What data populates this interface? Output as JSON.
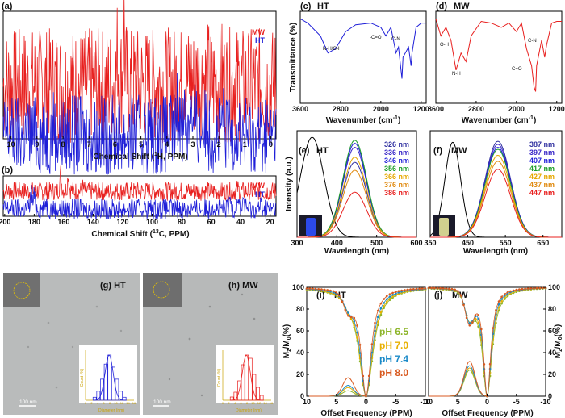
{
  "figure": {
    "colors": {
      "mw": "#e8201f",
      "ht": "#1f1fd8",
      "black": "#000000"
    }
  },
  "chart_data": [
    {
      "id": "a",
      "type": "line",
      "panel_label": "(a)",
      "xlabel": "Chemical Shift (1H, PPM)",
      "xlim": [
        10.3,
        -0.2
      ],
      "x_ticks": [
        "10",
        "9",
        "8",
        "7",
        "6",
        "5",
        "4",
        "3",
        "2",
        "1",
        "0"
      ],
      "legend": [
        "MW",
        "HT"
      ],
      "series": [
        {
          "name": "MW",
          "peaks": [
            [
              5.9,
              0.55
            ],
            [
              5.65,
              1.0
            ],
            [
              3.6,
              0.28
            ],
            [
              3.3,
              0.26
            ],
            [
              3.1,
              0.3
            ],
            [
              2.8,
              0.22
            ],
            [
              2.6,
              0.2
            ],
            [
              2.4,
              0.16
            ],
            [
              1.9,
              0.2
            ],
            [
              1.4,
              0.12
            ]
          ]
        },
        {
          "name": "HT",
          "peaks": [
            [
              8.35,
              0.35
            ],
            [
              3.6,
              0.6
            ],
            [
              3.45,
              0.8
            ],
            [
              3.3,
              0.65
            ],
            [
              3.1,
              1.0
            ],
            [
              2.9,
              0.45
            ],
            [
              2.6,
              0.55
            ],
            [
              2.45,
              0.35
            ],
            [
              1.85,
              0.55
            ],
            [
              1.4,
              0.2
            ]
          ]
        }
      ]
    },
    {
      "id": "b",
      "type": "line",
      "panel_label": "(b)",
      "xlabel": "Chemical Shift (13C, PPM)",
      "xlim": [
        201,
        16
      ],
      "x_ticks": [
        "200",
        "180",
        "160",
        "140",
        "120",
        "100",
        "80",
        "60",
        "40",
        "20"
      ],
      "legend": [
        "MW",
        "HT"
      ],
      "series": [
        {
          "name": "MW",
          "peaks": [
            [
              162,
              0.9
            ],
            [
              157,
              0.85
            ],
            [
              147,
              0.2
            ],
            [
              42,
              0.15
            ]
          ]
        },
        {
          "name": "HT",
          "peaks": [
            [
              182,
              0.8
            ],
            [
              180,
              0.6
            ],
            [
              172,
              0.45
            ],
            [
              59,
              0.25
            ],
            [
              47,
              0.45
            ],
            [
              42,
              0.6
            ],
            [
              38,
              0.5
            ],
            [
              26,
              0.3
            ]
          ]
        }
      ]
    },
    {
      "id": "c",
      "type": "line",
      "panel_label": "(c)",
      "title": "HT",
      "xlabel": "Wavenumber (cm-1)",
      "ylabel": "Transmittance (%)",
      "xlim": [
        3600,
        1100
      ],
      "x_ticks": [
        "3600",
        "2800",
        "2000",
        "1200"
      ],
      "annotations": [
        "N-H/O-H",
        "-C=O",
        "C-N"
      ],
      "series": [
        {
          "name": "HT",
          "points": [
            [
              3600,
              0.95
            ],
            [
              3450,
              0.9
            ],
            [
              3200,
              0.75
            ],
            [
              3050,
              0.55
            ],
            [
              2900,
              0.6
            ],
            [
              2700,
              0.8
            ],
            [
              2500,
              0.88
            ],
            [
              2200,
              0.9
            ],
            [
              2000,
              0.85
            ],
            [
              1900,
              0.75
            ],
            [
              1800,
              0.85
            ],
            [
              1700,
              0.55
            ],
            [
              1650,
              0.62
            ],
            [
              1580,
              0.25
            ],
            [
              1560,
              0.5
            ],
            [
              1450,
              0.62
            ],
            [
              1400,
              0.4
            ],
            [
              1380,
              0.55
            ],
            [
              1300,
              0.85
            ],
            [
              1200,
              0.9
            ],
            [
              1100,
              0.9
            ]
          ]
        }
      ]
    },
    {
      "id": "d",
      "type": "line",
      "panel_label": "(d)",
      "title": "MW",
      "xlabel": "Wavenumber (cm-1)",
      "xlim": [
        3600,
        1100
      ],
      "x_ticks": [
        "3600",
        "2800",
        "2000",
        "1200"
      ],
      "annotations": [
        "O-H",
        "N-H",
        "-C=O",
        "C-N"
      ],
      "series": [
        {
          "name": "MW",
          "points": [
            [
              3600,
              0.95
            ],
            [
              3500,
              0.75
            ],
            [
              3400,
              0.85
            ],
            [
              3300,
              0.7
            ],
            [
              3200,
              0.35
            ],
            [
              3100,
              0.55
            ],
            [
              3000,
              0.45
            ],
            [
              2900,
              0.75
            ],
            [
              2700,
              0.92
            ],
            [
              2500,
              0.9
            ],
            [
              2300,
              0.85
            ],
            [
              2150,
              0.9
            ],
            [
              2000,
              0.8
            ],
            [
              1900,
              0.9
            ],
            [
              1800,
              0.6
            ],
            [
              1700,
              0.4
            ],
            [
              1650,
              0.15
            ],
            [
              1620,
              0.1
            ],
            [
              1600,
              0.4
            ],
            [
              1500,
              0.7
            ],
            [
              1440,
              0.5
            ],
            [
              1400,
              0.65
            ],
            [
              1300,
              0.9
            ],
            [
              1200,
              0.92
            ],
            [
              1100,
              0.92
            ]
          ]
        }
      ]
    },
    {
      "id": "e",
      "type": "line",
      "panel_label": "(e)",
      "title": "HT",
      "xlabel": "Wavelength (nm)",
      "ylabel": "Intensity (a.u.)",
      "xlim": [
        300,
        600
      ],
      "x_ticks": [
        "300",
        "400",
        "500",
        "600"
      ],
      "legend": [
        "326 nm",
        "336 nm",
        "346 nm",
        "356 nm",
        "366 nm",
        "376 nm",
        "386 nm"
      ],
      "legend_colors": [
        "#3030a0",
        "#3a28c8",
        "#1f1fd8",
        "#1e9e2a",
        "#e6a800",
        "#e08a10",
        "#e8201f"
      ],
      "emission_center": 445,
      "emission_width": 42,
      "emission_heights": [
        0.75,
        0.9,
        0.94,
        0.97,
        0.8,
        0.67,
        0.45
      ],
      "excitation_center": 338,
      "excitation_width": 42,
      "excitation_height": 1.0
    },
    {
      "id": "f",
      "type": "line",
      "panel_label": "(f)",
      "title": "MW",
      "xlabel": "Wavelength (nm)",
      "xlim": [
        350,
        700
      ],
      "x_ticks": [
        "350",
        "450",
        "550",
        "650"
      ],
      "legend": [
        "387 nm",
        "397 nm",
        "407 nm",
        "417 nm",
        "427 nm",
        "437 nm",
        "447 nm"
      ],
      "legend_colors": [
        "#3030a0",
        "#3a28c8",
        "#1f1fd8",
        "#1e9e2a",
        "#e6a800",
        "#e08a10",
        "#e8201f"
      ],
      "emission_center": 530,
      "emission_width": 48,
      "emission_heights": [
        0.96,
        0.93,
        0.9,
        0.88,
        0.82,
        0.76,
        0.68
      ],
      "excitation_center": 410,
      "excitation_width": 30,
      "excitation_height": 0.95
    },
    {
      "id": "i",
      "type": "line",
      "panel_label": "(i)",
      "title": "HT",
      "xlabel": "Offset Frequency (PPM)",
      "ylabel": "Mz/M0(%)",
      "xlim": [
        10,
        -10
      ],
      "ylim": [
        0,
        100
      ],
      "x_ticks": [
        "10",
        "5",
        "0",
        "-5",
        "-10"
      ],
      "y_ticks": [
        "0",
        "20",
        "40",
        "60",
        "80",
        "100"
      ],
      "legend": [
        "pH 6.5",
        "pH 7.0",
        "pH 7.4",
        "pH 8.0"
      ],
      "legend_colors": [
        "#8db52a",
        "#e8b000",
        "#1a8ac8",
        "#d85a20"
      ],
      "curve_widths": [
        3.2,
        3.0,
        2.7,
        2.3
      ],
      "peak_heights": [
        5,
        8,
        10,
        17
      ]
    },
    {
      "id": "j",
      "type": "line",
      "panel_label": "(j)",
      "title": "MW",
      "xlabel": "Offset Frequency (PPM)",
      "ylabel": "Mz/M0(%)",
      "xlim": [
        10,
        -10
      ],
      "ylim": [
        0,
        100
      ],
      "x_ticks": [
        "10",
        "5",
        "0",
        "-5",
        "-10"
      ],
      "y_ticks": [
        "0",
        "20",
        "40",
        "60",
        "80",
        "100"
      ],
      "curve_widths": [
        2.3,
        2.1,
        1.9,
        1.7
      ],
      "peak_heights": [
        24,
        26,
        28,
        32
      ]
    }
  ],
  "tem": {
    "g": {
      "label": "(g) HT",
      "scale_bar": "100 nm",
      "inset_ylabel": "Count (%)",
      "inset_xlabel": "Diameter (nm)",
      "inset_ticks": [
        "0",
        "2",
        "4",
        "6",
        "8",
        "10",
        "12",
        "14",
        "16"
      ],
      "hist_color": "#1f1fd8",
      "hist": [
        2,
        6,
        14,
        24,
        30,
        22,
        14,
        6,
        2
      ]
    },
    "h": {
      "label": "(h) MW",
      "scale_bar": "100 nm",
      "inset_ylabel": "Count (%)",
      "inset_xlabel": "Diameter (nm)",
      "inset_ticks": [
        "0",
        "2",
        "4",
        "6",
        "8",
        "10",
        "12",
        "14",
        "16"
      ],
      "hist_color": "#e8201f",
      "hist": [
        2,
        5,
        12,
        22,
        28,
        26,
        16,
        8,
        3
      ]
    }
  }
}
